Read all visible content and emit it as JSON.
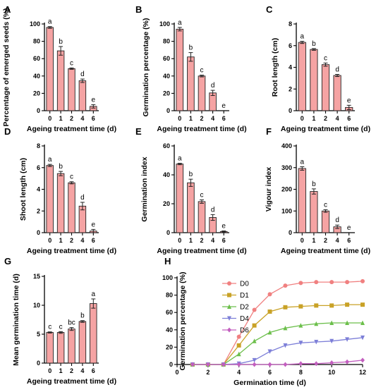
{
  "colors": {
    "bar_fill": "#f5a3a3",
    "bar_stroke": "#222222",
    "axis": "#000000",
    "series": [
      "#f08080",
      "#c9a227",
      "#6cbf4b",
      "#7d7fd8",
      "#c35fbf"
    ]
  },
  "chart_data": [
    {
      "panel": "A",
      "type": "bar",
      "categories": [
        "0",
        "1",
        "2",
        "4",
        "6"
      ],
      "values": [
        96,
        69,
        48.5,
        34.5,
        5
      ],
      "errors": [
        1,
        5,
        0.8,
        2,
        2
      ],
      "letters": [
        "a",
        "b",
        "c",
        "d",
        "e"
      ],
      "ylabel": "Percentage of emerged seeds (%)",
      "xlabel": "Ageing treatment time (d)",
      "ylim": [
        0,
        100
      ],
      "yticks": [
        0,
        20,
        40,
        60,
        80,
        100
      ]
    },
    {
      "panel": "B",
      "type": "bar",
      "categories": [
        "0",
        "1",
        "2",
        "4",
        "6"
      ],
      "values": [
        94,
        62,
        40,
        20.5,
        0
      ],
      "errors": [
        2,
        5,
        1,
        3,
        0
      ],
      "letters": [
        "a",
        "b",
        "c",
        "d",
        "e"
      ],
      "ylabel": "Germination percentage (%)",
      "xlabel": "Ageing treatment time (d)",
      "ylim": [
        0,
        100
      ],
      "yticks": [
        0,
        20,
        40,
        60,
        80,
        100
      ]
    },
    {
      "panel": "C",
      "type": "bar",
      "categories": [
        "0",
        "1",
        "2",
        "4",
        "6"
      ],
      "values": [
        6.3,
        5.65,
        4.25,
        3.25,
        0.3
      ],
      "errors": [
        0.1,
        0.08,
        0.15,
        0.1,
        0.2
      ],
      "letters": [
        "a",
        "b",
        "c",
        "d",
        "e"
      ],
      "ylabel": "Root length (cm)",
      "xlabel": "Ageing treatment time (d)",
      "ylim": [
        0,
        8
      ],
      "yticks": [
        0,
        2,
        4,
        6,
        8
      ]
    },
    {
      "panel": "D",
      "type": "bar",
      "categories": [
        "0",
        "1",
        "2",
        "4",
        "6"
      ],
      "values": [
        6.2,
        5.45,
        4.6,
        2.45,
        0.15
      ],
      "errors": [
        0.1,
        0.2,
        0.1,
        0.35,
        0.15
      ],
      "letters": [
        "a",
        "b",
        "c",
        "d",
        "e"
      ],
      "ylabel": "Shoot length (cm)",
      "xlabel": "Ageing treatment time (d)",
      "ylim": [
        0,
        8
      ],
      "yticks": [
        0,
        2,
        4,
        6,
        8
      ]
    },
    {
      "panel": "E",
      "type": "bar",
      "categories": [
        "0",
        "1",
        "2",
        "4",
        "6"
      ],
      "values": [
        47.5,
        34.5,
        21.5,
        10.5,
        0.8
      ],
      "errors": [
        0.5,
        2.5,
        1.2,
        2,
        0.4
      ],
      "letters": [
        "a",
        "b",
        "c",
        "d",
        "e"
      ],
      "ylabel": "Germination index",
      "xlabel": "Ageing treatment time (d)",
      "ylim": [
        0,
        60
      ],
      "yticks": [
        0,
        20,
        40,
        60
      ]
    },
    {
      "panel": "F",
      "type": "bar",
      "categories": [
        "0",
        "1",
        "2",
        "4",
        "6"
      ],
      "values": [
        296,
        190,
        100,
        27,
        0
      ],
      "errors": [
        8,
        12,
        6,
        8,
        0
      ],
      "letters": [
        "a",
        "b",
        "c",
        "d",
        "e"
      ],
      "ylabel": "Vigour index",
      "xlabel": "Ageing treatment time (d)",
      "ylim": [
        0,
        400
      ],
      "yticks": [
        0,
        100,
        200,
        300,
        400
      ]
    },
    {
      "panel": "G",
      "type": "bar",
      "categories": [
        "0",
        "1",
        "2",
        "4",
        "6"
      ],
      "values": [
        5.3,
        5.3,
        5.9,
        7.2,
        10.3
      ],
      "errors": [
        0.1,
        0.15,
        0.25,
        0.15,
        0.8
      ],
      "letters": [
        "c",
        "c",
        "bc",
        "b",
        "a"
      ],
      "ylabel": "Mean germination time (d)",
      "xlabel": "Ageing treatment time (d)",
      "ylim": [
        0,
        15
      ],
      "yticks": [
        0,
        5,
        10,
        15
      ]
    },
    {
      "panel": "H",
      "type": "line",
      "x": [
        1,
        2,
        3,
        4,
        5,
        6,
        7,
        8,
        9,
        10,
        11,
        12
      ],
      "series": [
        {
          "name": "D0",
          "values": [
            0,
            0,
            0,
            32,
            63,
            81,
            91,
            94,
            95,
            95,
            95,
            96
          ]
        },
        {
          "name": "D1",
          "values": [
            0,
            0,
            0,
            22,
            45,
            61,
            66,
            67,
            68,
            68,
            69,
            69
          ]
        },
        {
          "name": "D2",
          "values": [
            0,
            0,
            0,
            12,
            27,
            37,
            42,
            45,
            47,
            48,
            48,
            48
          ]
        },
        {
          "name": "D4",
          "values": [
            0,
            0,
            0,
            1,
            5,
            15,
            22,
            25,
            26,
            27,
            29,
            31
          ]
        },
        {
          "name": "D6",
          "values": [
            0,
            0,
            0,
            0,
            0,
            0,
            0,
            1,
            1,
            2,
            3,
            5
          ]
        }
      ],
      "markers": [
        "circle",
        "square",
        "triangle-up",
        "triangle-down",
        "diamond"
      ],
      "ylabel": "Germination percentage (%)",
      "xlabel": "Germination time (d)",
      "xlim": [
        0,
        12
      ],
      "xticks": [
        0,
        2,
        4,
        6,
        8,
        10,
        12
      ],
      "ylim": [
        0,
        100
      ],
      "yticks": [
        0,
        20,
        40,
        60,
        80,
        100
      ],
      "legend": "top-right"
    }
  ]
}
